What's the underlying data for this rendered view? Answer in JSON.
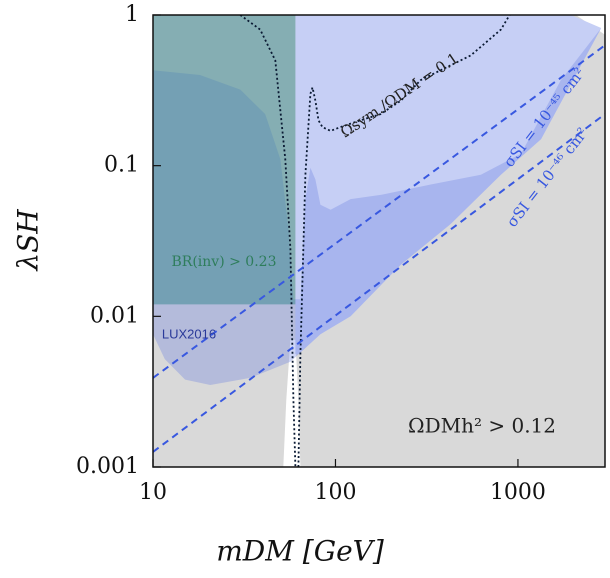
{
  "chart_data": {
    "type": "region",
    "xlabel": "mDM [GeV]",
    "ylabel": "λSH",
    "xscale": "log",
    "yscale": "log",
    "xlim": [
      10,
      3000
    ],
    "ylim": [
      0.001,
      1
    ],
    "xticks": [
      10,
      100,
      1000
    ],
    "yticks": [
      0.001,
      0.01,
      0.1,
      1
    ],
    "regions": [
      {
        "color": "#d9d9d9",
        "opacity": 1,
        "x": [
          10,
          51.8,
          53.8,
          56.6,
          60.3,
          62.6,
          64.2,
          3000,
          3000,
          2080,
          10
        ],
        "y": [
          0.001,
          0.001,
          0.0028,
          0.007,
          0.007,
          0.0028,
          0.001,
          0.001,
          0.74,
          1,
          1
        ]
      },
      {
        "color": "#c6cff5",
        "opacity": 1,
        "x": [
          60.3,
          1950,
          2860,
          1340,
          807,
          428,
          228,
          121,
          82.7,
          62.6,
          60.3
        ],
        "y": [
          1,
          1,
          0.82,
          0.15,
          0.087,
          0.041,
          0.022,
          0.01,
          0.0076,
          0.0056,
          0.0056
        ]
      },
      {
        "color": "#6a7fe0",
        "opacity": 0.33,
        "x": [
          10,
          18.1,
          30.1,
          41.2,
          49.9,
          55.2,
          58.8,
          64.2,
          68.4,
          72.9,
          77.6,
          82.7,
          94,
          121,
          177,
          333,
          627,
          1040,
          1720,
          2860,
          1340,
          807,
          428,
          228,
          121,
          82.7,
          56.6,
          34.1,
          20.6,
          15,
          11.6,
          10
        ],
        "y": [
          0.43,
          0.4,
          0.32,
          0.22,
          0.11,
          0.038,
          0.013,
          0.013,
          0.06,
          0.097,
          0.081,
          0.055,
          0.051,
          0.06,
          0.064,
          0.075,
          0.087,
          0.12,
          0.37,
          0.82,
          0.15,
          0.087,
          0.041,
          0.022,
          0.01,
          0.0076,
          0.005,
          0.0039,
          0.0035,
          0.0038,
          0.0052,
          0.0076
        ]
      },
      {
        "color": "#3f8a93",
        "opacity": 0.55,
        "x": [
          10,
          60.3,
          60.3,
          10
        ],
        "y": [
          1,
          1,
          0.012,
          0.012
        ]
      }
    ],
    "lines": [
      {
        "color": "#0a1a33",
        "style": "dotted",
        "x": [
          30.1,
          38.7,
          46.8,
          53.1,
          56.6,
          58.8,
          60.3,
          null,
          62.6,
          64.2,
          68.4,
          72.9,
          74.8,
          77.6,
          80.7,
          84.9,
          94,
          106,
          137,
          177,
          228,
          293,
          378,
          552,
          807,
          900
        ],
        "y": [
          1,
          0.8,
          0.5,
          0.11,
          0.028,
          0.0028,
          0.001,
          null,
          0.001,
          0.0056,
          0.087,
          0.3,
          0.33,
          0.27,
          0.2,
          0.18,
          0.17,
          0.18,
          0.2,
          0.22,
          0.27,
          0.37,
          0.43,
          0.54,
          0.8,
          1
        ]
      },
      {
        "color": "#3858e0",
        "style": "dashed",
        "x": [
          10,
          3000
        ],
        "y": [
          0.0039,
          0.63
        ]
      },
      {
        "color": "#3858e0",
        "style": "dashed",
        "x": [
          10,
          3000
        ],
        "y": [
          0.00126,
          0.22
        ]
      }
    ],
    "annotations": [
      "Ωsym./ΩDM = 0.1",
      "σSI = 10⁻⁴⁵ cm²",
      "σSI = 10⁻⁴⁶ cm²",
      "BR(inv) > 0.23",
      "LUX2016",
      "ΩDMh² > 0.12"
    ]
  }
}
